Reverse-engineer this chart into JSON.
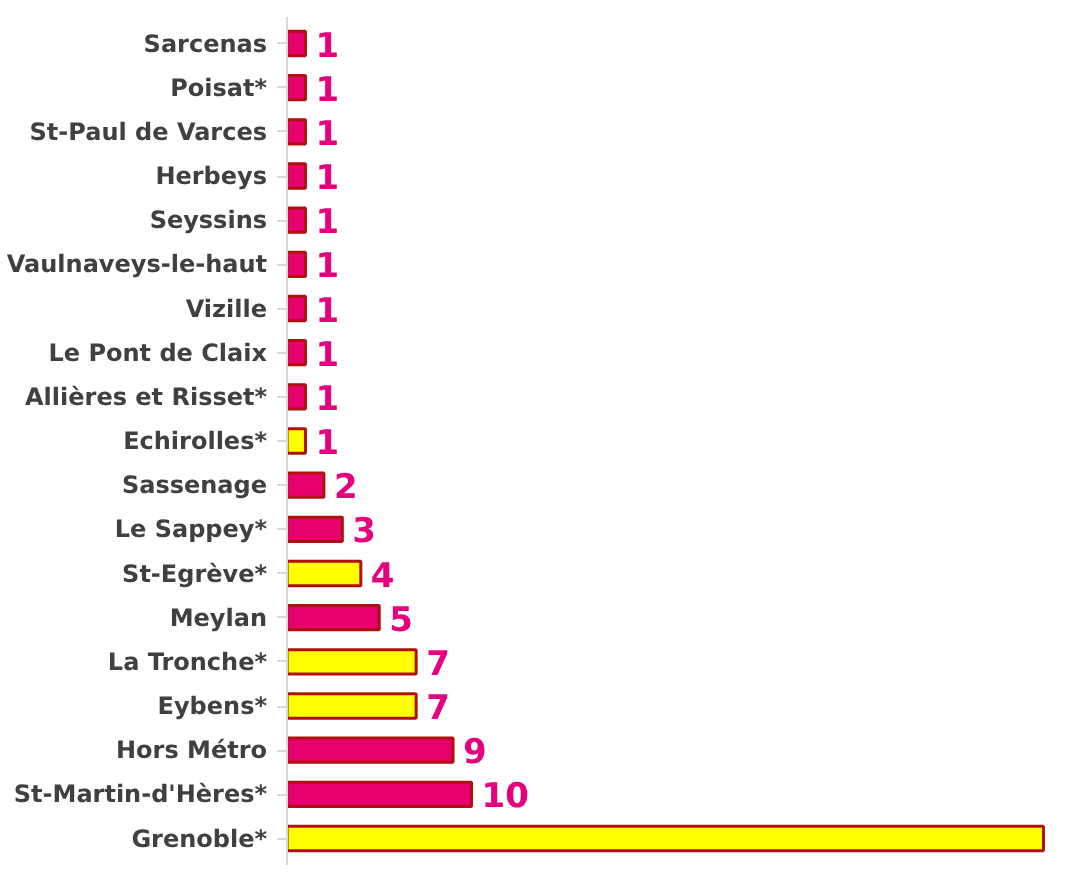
{
  "chart_data": {
    "type": "bar",
    "orientation": "horizontal",
    "categories": [
      "Sarcenas",
      "Poisat*",
      "St-Paul de Varces",
      "Herbeys",
      "Seyssins",
      "Vaulnaveys-le-haut",
      "Vizille",
      "Le Pont de Claix",
      "Allières et Risset*",
      "Echirolles*",
      "Sassenage",
      "Le Sappey*",
      "St-Egrève*",
      "Meylan",
      "La Tronche*",
      "Eybens*",
      "Hors Métro",
      "St-Martin-d'Hères*",
      "Grenoble*"
    ],
    "values": [
      1,
      1,
      1,
      1,
      1,
      1,
      1,
      1,
      1,
      1,
      2,
      3,
      4,
      5,
      7,
      7,
      9,
      10,
      41
    ],
    "colors": [
      "#e8006f",
      "#e8006f",
      "#e8006f",
      "#e8006f",
      "#e8006f",
      "#e8006f",
      "#e8006f",
      "#e8006f",
      "#e8006f",
      "#ffff00",
      "#e8006f",
      "#e8006f",
      "#ffff00",
      "#e8006f",
      "#ffff00",
      "#ffff00",
      "#e8006f",
      "#e8006f",
      "#ffff00"
    ],
    "value_labels": [
      "1",
      "1",
      "1",
      "1",
      "1",
      "1",
      "1",
      "1",
      "1",
      "1",
      "2",
      "3",
      "4",
      "5",
      "7",
      "7",
      "9",
      "10",
      null
    ],
    "grid": false
  }
}
